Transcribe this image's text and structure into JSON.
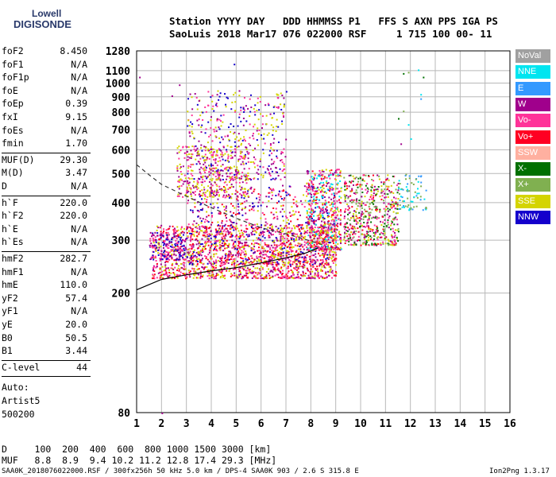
{
  "logo": {
    "line1": "Lowell",
    "line2": "DIGISONDE"
  },
  "header": {
    "line1": "Station YYYY DAY   DDD HHMMSS P1   FFS S AXN PPS IGA PS",
    "line2": "SaoLuis 2018 Mar17 076 022000 RSF     1 715 100 00- 11"
  },
  "params": [
    {
      "group": 1,
      "label": "foF2",
      "value": "8.450"
    },
    {
      "group": 1,
      "label": "foF1",
      "value": "N/A"
    },
    {
      "group": 1,
      "label": "foF1p",
      "value": "N/A"
    },
    {
      "group": 1,
      "label": "foE",
      "value": "N/A"
    },
    {
      "group": 1,
      "label": "foEp",
      "value": "0.39"
    },
    {
      "group": 1,
      "label": "fxI",
      "value": "9.15"
    },
    {
      "group": 1,
      "label": "foEs",
      "value": "N/A"
    },
    {
      "group": 1,
      "label": "fmin",
      "value": "1.70"
    },
    {
      "group": 2,
      "label": "MUF(D)",
      "value": "29.30"
    },
    {
      "group": 2,
      "label": "M(D)",
      "value": "3.47"
    },
    {
      "group": 2,
      "label": "D",
      "value": "N/A"
    },
    {
      "group": 3,
      "label": "h`F",
      "value": "220.0"
    },
    {
      "group": 3,
      "label": "h`F2",
      "value": "220.0"
    },
    {
      "group": 3,
      "label": "h`E",
      "value": "N/A"
    },
    {
      "group": 3,
      "label": "h`Es",
      "value": "N/A"
    },
    {
      "group": 4,
      "label": "hmF2",
      "value": "282.7"
    },
    {
      "group": 4,
      "label": "hmF1",
      "value": "N/A"
    },
    {
      "group": 4,
      "label": "hmE",
      "value": "110.0"
    },
    {
      "group": 4,
      "label": "yF2",
      "value": "57.4"
    },
    {
      "group": 4,
      "label": "yF1",
      "value": "N/A"
    },
    {
      "group": 4,
      "label": "yE",
      "value": "20.0"
    },
    {
      "group": 4,
      "label": "B0",
      "value": "50.5"
    },
    {
      "group": 4,
      "label": "B1",
      "value": "3.44"
    },
    {
      "group": 5,
      "label": "C-level",
      "value": "44"
    }
  ],
  "auto": {
    "line1": "Auto:",
    "line2": "Artist5",
    "line3": "500200"
  },
  "footer": {
    "d_line": "D     100  200  400  600  800 1000 1500 3000 [km]",
    "muf_line": "MUF   8.8  8.9  9.4 10.2 11.2 12.8 17.4 29.3 [MHz]",
    "bottom_left": "SAA0K_2018076022000.RSF / 300fx256h 50 kHz 5.0 km / DPS-4 SAA0K 903 / 2.6 S 315.8 E",
    "bottom_right": "Ion2Png 1.3.17"
  },
  "legend": [
    {
      "label": "NoVal",
      "color": "#a0a0a0"
    },
    {
      "label": "NNE",
      "color": "#00e5f0"
    },
    {
      "label": "E",
      "color": "#3399ff"
    },
    {
      "label": "W",
      "color": "#a0008c"
    },
    {
      "label": "Vo-",
      "color": "#ff3399"
    },
    {
      "label": "Vo+",
      "color": "#ff0022"
    },
    {
      "label": "SSW",
      "color": "#ffb0a0"
    },
    {
      "label": "X-",
      "color": "#007000"
    },
    {
      "label": "X+",
      "color": "#80b050"
    },
    {
      "label": "SSE",
      "color": "#d4d400"
    },
    {
      "label": "NNW",
      "color": "#1400cc"
    }
  ],
  "chart_data": {
    "type": "scatter",
    "title": "",
    "xlabel": "",
    "ylabel": "",
    "xlim": [
      1,
      16
    ],
    "ylim": [
      80,
      1280
    ],
    "yscale": "log",
    "grid": true,
    "x_ticks": [
      "1",
      "2",
      "3",
      "4",
      "5",
      "6",
      "7",
      "8",
      "9",
      "10",
      "11",
      "12",
      "13",
      "14",
      "15",
      "16"
    ],
    "y_ticks": [
      80,
      200,
      300,
      400,
      500,
      600,
      700,
      800,
      900,
      1000,
      1100,
      1280
    ],
    "lines": [
      {
        "name": "trace-solid",
        "style": "solid",
        "points": [
          [
            1.0,
            205
          ],
          [
            2.0,
            222
          ],
          [
            3.0,
            230
          ],
          [
            4.0,
            237
          ],
          [
            5.0,
            243
          ],
          [
            6.0,
            252
          ],
          [
            7.0,
            262
          ],
          [
            7.8,
            272
          ],
          [
            8.3,
            283
          ]
        ]
      },
      {
        "name": "trace-dashed",
        "style": "dashed",
        "points": [
          [
            1.0,
            535
          ],
          [
            1.5,
            495
          ],
          [
            2.0,
            460
          ],
          [
            3.0,
            420
          ],
          [
            4.0,
            385
          ],
          [
            5.0,
            355
          ],
          [
            6.0,
            330
          ],
          [
            7.0,
            315
          ],
          [
            8.0,
            298
          ],
          [
            8.45,
            290
          ]
        ]
      }
    ],
    "clusters": [
      {
        "x": [
          1.6,
          9.0
        ],
        "y": [
          225,
          340
        ],
        "n": 1400,
        "palette": [
          "#ff0022",
          "#ff3399",
          "#a0008c",
          "#d4d400"
        ]
      },
      {
        "x": [
          3.0,
          9.0
        ],
        "y": [
          250,
          460
        ],
        "n": 900,
        "palette": [
          "#a0008c",
          "#ff3399",
          "#d4d400",
          "#1400cc",
          "#ff0022"
        ]
      },
      {
        "x": [
          7.8,
          9.2
        ],
        "y": [
          280,
          520
        ],
        "n": 500,
        "palette": [
          "#ff0022",
          "#a0008c",
          "#d4d400",
          "#ff3399",
          "#00e5f0"
        ]
      },
      {
        "x": [
          9.3,
          11.5
        ],
        "y": [
          290,
          500
        ],
        "n": 550,
        "palette": [
          "#a0008c",
          "#ff3399",
          "#d4d400",
          "#ff0022",
          "#80b050",
          "#007000"
        ]
      },
      {
        "x": [
          11.5,
          12.7
        ],
        "y": [
          380,
          500
        ],
        "n": 70,
        "palette": [
          "#00e5f0",
          "#3399ff",
          "#80b050"
        ]
      },
      {
        "x": [
          3.0,
          7.0
        ],
        "y": [
          480,
          950
        ],
        "n": 450,
        "palette": [
          "#d4d400",
          "#a0008c",
          "#ff3399",
          "#1400cc"
        ]
      },
      {
        "x": [
          2.6,
          5.5
        ],
        "y": [
          420,
          620
        ],
        "n": 350,
        "palette": [
          "#d4d400",
          "#a0008c",
          "#ff3399"
        ]
      },
      {
        "x": [
          1.5,
          3.0
        ],
        "y": [
          260,
          320
        ],
        "n": 180,
        "palette": [
          "#a0008c",
          "#ff3399",
          "#1400cc"
        ]
      }
    ],
    "sparse_points": [
      {
        "x": 1.1,
        "y": 1050,
        "c": "#a0008c"
      },
      {
        "x": 4.9,
        "y": 1160,
        "c": "#1400cc"
      },
      {
        "x": 2.7,
        "y": 990,
        "c": "#a0008c"
      },
      {
        "x": 11.7,
        "y": 1080,
        "c": "#007000"
      },
      {
        "x": 11.9,
        "y": 1090,
        "c": "#80b050"
      },
      {
        "x": 12.3,
        "y": 1110,
        "c": "#00e5f0"
      },
      {
        "x": 12.5,
        "y": 1050,
        "c": "#007000"
      },
      {
        "x": 12.4,
        "y": 920,
        "c": "#00e5f0"
      },
      {
        "x": 12.4,
        "y": 890,
        "c": "#3399ff"
      },
      {
        "x": 11.7,
        "y": 810,
        "c": "#80b050"
      },
      {
        "x": 11.9,
        "y": 730,
        "c": "#00e5f0"
      },
      {
        "x": 11.5,
        "y": 765,
        "c": "#007000"
      },
      {
        "x": 12.0,
        "y": 655,
        "c": "#00e5f0"
      },
      {
        "x": 11.6,
        "y": 630,
        "c": "#a0008c"
      },
      {
        "x": 2.0,
        "y": 80,
        "c": "#a0008c"
      },
      {
        "x": 2.4,
        "y": 910,
        "c": "#a0008c"
      }
    ]
  }
}
